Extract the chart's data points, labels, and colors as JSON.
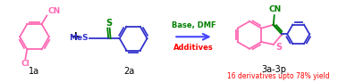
{
  "background_color": "#ffffff",
  "arrow_color": "#4444ff",
  "plus_color": "#000000",
  "label_1a": "1a",
  "label_2a": "2a",
  "label_3a3p": "3a-3p",
  "label_yield": "16 derivatives upto 78% yield",
  "arrow_above": "Base, DMF",
  "arrow_below": "Additives",
  "arrow_above_color": "#008000",
  "arrow_below_color": "#ff0000",
  "label_color": "#000000",
  "yield_color": "#ff0000",
  "pink": "#ff69b4",
  "blue": "#3333cc",
  "green": "#008000",
  "figsize": [
    3.78,
    0.92
  ],
  "dpi": 100
}
